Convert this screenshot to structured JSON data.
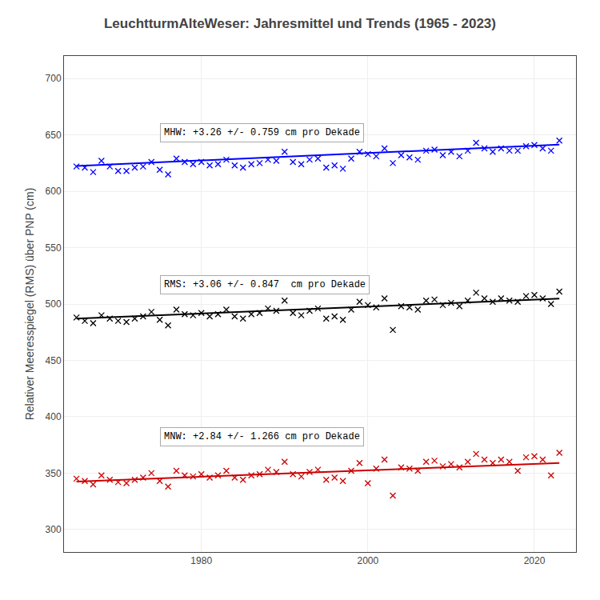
{
  "chart_data": {
    "type": "scatter",
    "title": "LeuchtturmAlteWeser: Jahresmittel und Trends (1965 - 2023)",
    "ylabel": "Relativer Meeresspiegel (RMS) über PNP (cm)",
    "xlim": [
      1963.5,
      2025
    ],
    "xticks": [
      1980,
      2000,
      2020
    ],
    "ylim": [
      280,
      720
    ],
    "yticks": [
      300,
      350,
      400,
      450,
      500,
      550,
      600,
      650,
      700
    ],
    "grid": true,
    "series": [
      {
        "type": "scatter",
        "marker": "x",
        "color": "#0000FF",
        "x": [
          1965,
          1966,
          1967,
          1968,
          1969,
          1970,
          1971,
          1972,
          1973,
          1974,
          1975,
          1976,
          1977,
          1978,
          1979,
          1980,
          1981,
          1982,
          1983,
          1984,
          1985,
          1986,
          1987,
          1988,
          1989,
          1990,
          1991,
          1992,
          1993,
          1994,
          1995,
          1996,
          1997,
          1998,
          1999,
          2000,
          2001,
          2002,
          2003,
          2004,
          2005,
          2006,
          2007,
          2008,
          2009,
          2010,
          2011,
          2012,
          2013,
          2014,
          2015,
          2016,
          2017,
          2018,
          2019,
          2020,
          2021,
          2022,
          2023
        ],
        "values": [
          622,
          621,
          617,
          627,
          622,
          618,
          618,
          621,
          622,
          626,
          619,
          615,
          629,
          626,
          624,
          626,
          623,
          624,
          628,
          623,
          621,
          624,
          625,
          628,
          627,
          635,
          626,
          624,
          628,
          629,
          621,
          623,
          620,
          629,
          635,
          633,
          631,
          638,
          625,
          632,
          630,
          628,
          636,
          637,
          632,
          635,
          631,
          636,
          643,
          638,
          635,
          638,
          636,
          636,
          640,
          641,
          638,
          636,
          645
        ]
      },
      {
        "type": "line",
        "line_style": "solid",
        "color": "#0000FF",
        "x": [
          1965,
          2023
        ],
        "values": [
          622.5,
          641.408
        ]
      },
      {
        "type": "scatter",
        "marker": "x",
        "color": "#000000",
        "x": [
          1965,
          1966,
          1967,
          1968,
          1969,
          1970,
          1971,
          1972,
          1973,
          1974,
          1975,
          1976,
          1977,
          1978,
          1979,
          1980,
          1981,
          1982,
          1983,
          1984,
          1985,
          1986,
          1987,
          1988,
          1989,
          1990,
          1991,
          1992,
          1993,
          1994,
          1995,
          1996,
          1997,
          1998,
          1999,
          2000,
          2001,
          2002,
          2003,
          2004,
          2005,
          2006,
          2007,
          2008,
          2009,
          2010,
          2011,
          2012,
          2013,
          2014,
          2015,
          2016,
          2017,
          2018,
          2019,
          2020,
          2021,
          2022,
          2023
        ],
        "values": [
          488,
          485,
          483,
          490,
          487,
          485,
          484,
          487,
          489,
          493,
          486,
          481,
          495,
          491,
          490,
          492,
          489,
          491,
          495,
          489,
          487,
          491,
          492,
          496,
          494,
          503,
          492,
          490,
          494,
          496,
          487,
          489,
          486,
          495,
          502,
          499,
          497,
          505,
          477,
          498,
          497,
          495,
          503,
          504,
          499,
          501,
          498,
          503,
          510,
          505,
          502,
          505,
          503,
          502,
          507,
          508,
          505,
          500,
          511
        ]
      },
      {
        "type": "line",
        "line_style": "solid",
        "color": "#000000",
        "x": [
          1965,
          2023
        ],
        "values": [
          487.0,
          504.748
        ]
      },
      {
        "type": "scatter",
        "marker": "x",
        "color": "#CC0000",
        "x": [
          1965,
          1966,
          1967,
          1968,
          1969,
          1970,
          1971,
          1972,
          1973,
          1974,
          1975,
          1976,
          1977,
          1978,
          1979,
          1980,
          1981,
          1982,
          1983,
          1984,
          1985,
          1986,
          1987,
          1988,
          1989,
          1990,
          1991,
          1992,
          1993,
          1994,
          1995,
          1996,
          1997,
          1998,
          1999,
          2000,
          2001,
          2002,
          2003,
          2004,
          2005,
          2006,
          2007,
          2008,
          2009,
          2010,
          2011,
          2012,
          2013,
          2014,
          2015,
          2016,
          2017,
          2018,
          2019,
          2020,
          2021,
          2022,
          2023
        ],
        "values": [
          345,
          343,
          340,
          348,
          344,
          342,
          341,
          344,
          346,
          350,
          343,
          338,
          352,
          348,
          347,
          349,
          346,
          348,
          352,
          346,
          344,
          348,
          349,
          353,
          351,
          360,
          349,
          347,
          351,
          353,
          344,
          346,
          343,
          352,
          359,
          341,
          354,
          362,
          330,
          355,
          354,
          352,
          360,
          361,
          356,
          358,
          355,
          360,
          367,
          362,
          359,
          362,
          360,
          352,
          364,
          365,
          362,
          348,
          368
        ]
      },
      {
        "type": "line",
        "line_style": "solid",
        "color": "#CC0000",
        "x": [
          1965,
          2023
        ],
        "values": [
          342.5,
          358.972
        ]
      }
    ],
    "annotations": [
      {
        "text": "MHW: +3.26 +/- 0.759 cm pro Dekade",
        "x": 1975,
        "y": 652
      },
      {
        "text": "RMS: +3.06 +/- 0.847  cm pro Dekade",
        "x": 1975,
        "y": 517
      },
      {
        "text": "MNW: +2.84 +/- 1.266 cm pro Dekade",
        "x": 1975,
        "y": 382
      }
    ]
  }
}
